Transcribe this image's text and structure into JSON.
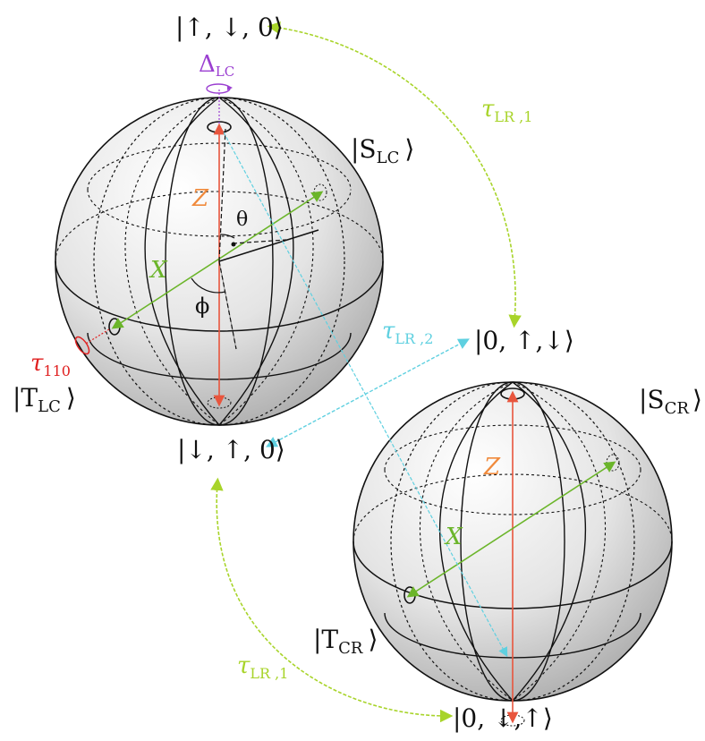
{
  "title": "Bloch sphere diagram of spin states with tunneling couplings",
  "colors": {
    "z_axis": "#e8553d",
    "x_axis": "#6bb52a",
    "z_label": "#f08a3c",
    "tau_lr1": "#a8d42a",
    "tau_lr2": "#5fd0e0",
    "delta": "#9b3fd1",
    "tau110": "#e02020",
    "sphere_line": "#111111"
  },
  "left_sphere": {
    "top_state": "|↑, ↓, 0⟩",
    "bottom_state": "|↓, ↑, 0⟩",
    "s_state": {
      "prefix": "|S",
      "sub": "LC",
      "suffix": "⟩"
    },
    "t_state": {
      "prefix": "|T",
      "sub": "LC",
      "suffix": "⟩"
    },
    "z_label": "Z",
    "x_label": "X",
    "theta_label": "θ",
    "phi_label": "ϕ",
    "delta_label": {
      "main": "Δ",
      "sub": "LC"
    },
    "tau110_label": {
      "main": "τ",
      "sub": "110"
    }
  },
  "right_sphere": {
    "top_state": "|0, ↑,↓⟩",
    "bottom_state": "|0, ↓,↑⟩",
    "s_state": {
      "prefix": "|S",
      "sub": "CR",
      "suffix": "⟩"
    },
    "t_state": {
      "prefix": "|T",
      "sub": "CR",
      "suffix": "⟩"
    },
    "z_label": "Z",
    "x_label": "X"
  },
  "couplings": {
    "tau_lr1_top": {
      "main": "τ",
      "sub": "LR ,1"
    },
    "tau_lr2": {
      "main": "τ",
      "sub": "LR ,2"
    },
    "tau_lr1_bottom": {
      "main": "τ",
      "sub": "LR ,1"
    }
  }
}
